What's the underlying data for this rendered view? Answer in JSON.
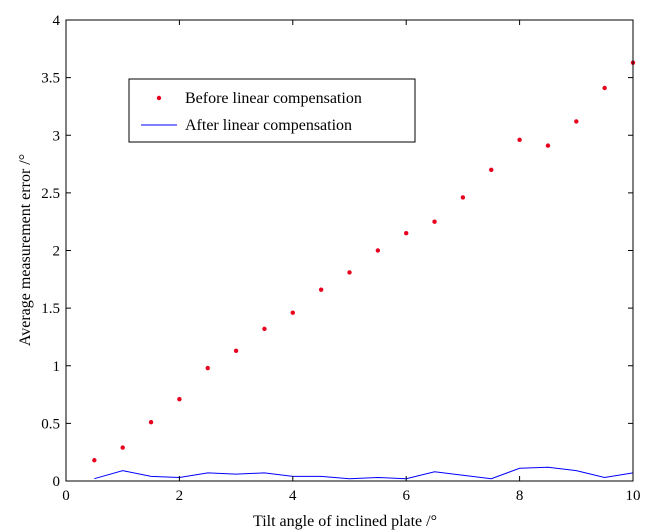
{
  "chart_data": {
    "type": "scatter",
    "xlabel": "Tilt angle of inclined plate /°",
    "ylabel": "Average measurement error /°",
    "xlim": [
      0,
      10
    ],
    "ylim": [
      0,
      4
    ],
    "xticks": [
      "0",
      "2",
      "4",
      "6",
      "8",
      "10"
    ],
    "yticks": [
      "0",
      "0.5",
      "1",
      "1.5",
      "2",
      "2.5",
      "3",
      "3.5",
      "4"
    ],
    "grid": false,
    "legend_position": "upper-left",
    "series": [
      {
        "name": "Before linear compensation",
        "style": "markers",
        "color": "#e8001c",
        "x": [
          0.5,
          1,
          1.5,
          2,
          2.5,
          3,
          3.5,
          4,
          4.5,
          5,
          5.5,
          6,
          6.5,
          7,
          7.5,
          8,
          8.5,
          9,
          9.5,
          10
        ],
        "y": [
          0.18,
          0.29,
          0.51,
          0.71,
          0.98,
          1.13,
          1.32,
          1.46,
          1.66,
          1.81,
          2.0,
          2.15,
          2.25,
          2.46,
          2.7,
          2.96,
          2.91,
          3.12,
          3.41,
          3.63
        ]
      },
      {
        "name": "After   linear compensation",
        "style": "line",
        "color": "#0000ff",
        "x": [
          0.5,
          1,
          1.5,
          2,
          2.5,
          3,
          3.5,
          4,
          4.5,
          5,
          5.5,
          6,
          6.5,
          7,
          7.5,
          8,
          8.5,
          9,
          9.5,
          10
        ],
        "y": [
          0.02,
          0.09,
          0.04,
          0.03,
          0.07,
          0.06,
          0.07,
          0.04,
          0.04,
          0.02,
          0.03,
          0.02,
          0.08,
          0.05,
          0.02,
          0.11,
          0.12,
          0.09,
          0.03,
          0.07
        ]
      }
    ]
  }
}
